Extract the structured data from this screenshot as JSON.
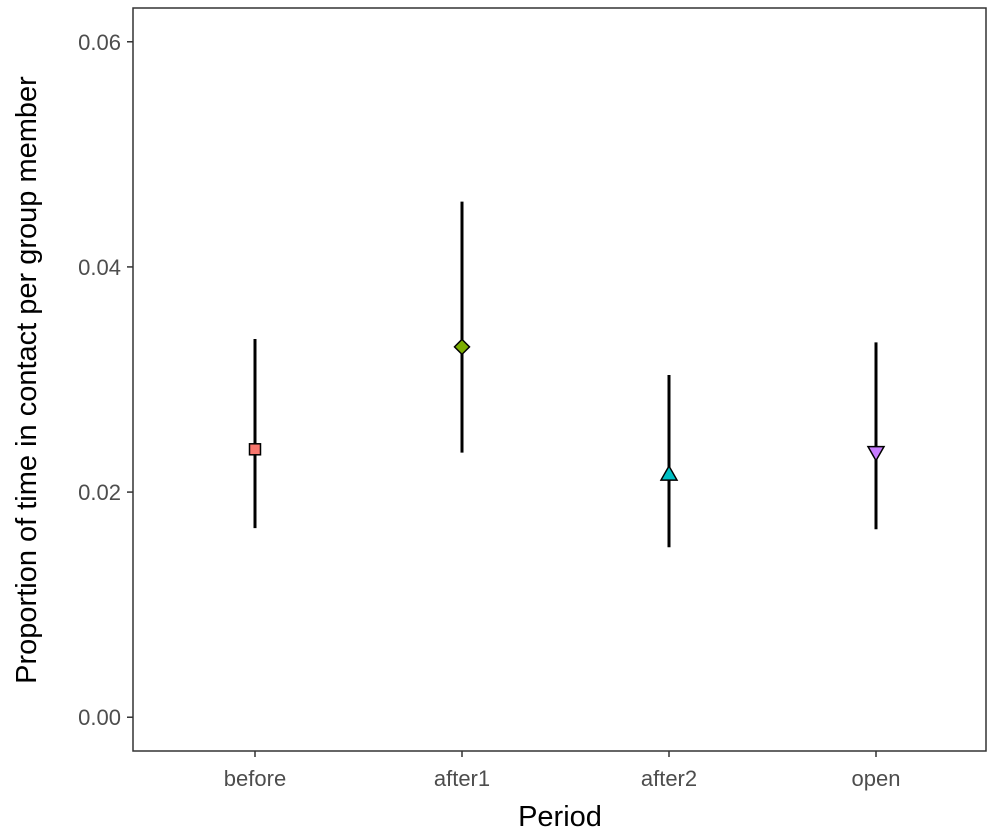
{
  "chart_data": {
    "type": "scatter",
    "xlabel": "Period",
    "ylabel": "Proportion of time in contact per group member",
    "categories": [
      "before",
      "after1",
      "after2",
      "open"
    ],
    "ylim": [
      -0.003,
      0.063
    ],
    "y_ticks": [
      0.0,
      0.02,
      0.04,
      0.06
    ],
    "y_tick_labels": [
      "0.00",
      "0.02",
      "0.04",
      "0.06"
    ],
    "grid": false,
    "points": [
      {
        "category": "before",
        "value": 0.0238,
        "lower": 0.0168,
        "upper": 0.0336,
        "shape": "square",
        "color": "#F8766D"
      },
      {
        "category": "after1",
        "value": 0.0329,
        "lower": 0.0235,
        "upper": 0.0458,
        "shape": "diamond",
        "color": "#7CAE00"
      },
      {
        "category": "after2",
        "value": 0.0216,
        "lower": 0.0151,
        "upper": 0.0304,
        "shape": "triangle-up",
        "color": "#00BFC4"
      },
      {
        "category": "open",
        "value": 0.0235,
        "lower": 0.0167,
        "upper": 0.0333,
        "shape": "triangle-down",
        "color": "#C77CFF"
      }
    ]
  }
}
